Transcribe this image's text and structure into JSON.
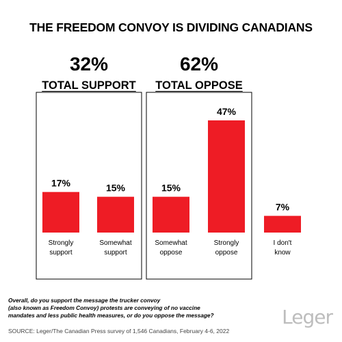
{
  "title": "THE FREEDOM CONVOY IS DIVIDING CANADIANS",
  "groups": [
    {
      "total": "32%",
      "label": "TOTAL SUPPORT"
    },
    {
      "total": "62%",
      "label": "TOTAL OPPOSE"
    }
  ],
  "question": [
    "Overall, do you support the message the trucker convoy",
    "(also known as Freedom Convoy) protests are conveying of no vaccine",
    "mandates and less public health measures, or do you oppose the message?"
  ],
  "source": "SOURCE: Leger/The Canadian Press survey of 1,546 Canadians, February 4-6, 2022",
  "logo": "Leger",
  "colors": {
    "bar": "#ee1c25",
    "frame": "#000000",
    "text": "#000000"
  },
  "chart_data": {
    "type": "bar",
    "title": "THE FREEDOM CONVOY IS DIVIDING CANADIANS",
    "categories": [
      [
        "Strongly",
        "support"
      ],
      [
        "Somewhat",
        "support"
      ],
      [
        "Somewhat",
        "oppose"
      ],
      [
        "Strongly",
        "oppose"
      ],
      [
        "I don't",
        "know"
      ]
    ],
    "values": [
      17,
      15,
      15,
      47,
      7
    ],
    "value_labels": [
      "17%",
      "15%",
      "15%",
      "47%",
      "7%"
    ],
    "ylim": [
      0,
      47
    ],
    "grid": false,
    "legend": "none"
  }
}
